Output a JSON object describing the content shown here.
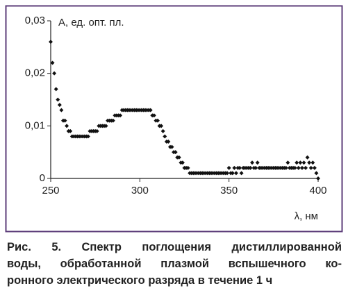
{
  "chart_data": {
    "type": "scatter",
    "ylabel": "A, ед. опт. пл.",
    "xlabel": "λ, нм",
    "color": "#111111",
    "xlim": [
      250,
      400
    ],
    "xticks": [
      250,
      300,
      350,
      400
    ],
    "ylim": [
      0,
      0.03
    ],
    "yticks": [
      {
        "value": 0,
        "label": "0"
      },
      {
        "value": 0.01,
        "label": "0,01"
      },
      {
        "value": 0.02,
        "label": "0,02"
      },
      {
        "value": 0.03,
        "label": "0,03"
      }
    ],
    "x": [
      250,
      251,
      252,
      253,
      254,
      255,
      256,
      257,
      258,
      259,
      260,
      261,
      262,
      263,
      264,
      265,
      266,
      267,
      268,
      269,
      270,
      271,
      272,
      273,
      274,
      275,
      276,
      277,
      278,
      279,
      280,
      281,
      282,
      283,
      284,
      285,
      286,
      287,
      288,
      289,
      290,
      291,
      292,
      293,
      294,
      295,
      296,
      297,
      298,
      299,
      300,
      301,
      302,
      303,
      304,
      305,
      306,
      307,
      308,
      309,
      310,
      311,
      312,
      313,
      314,
      315,
      316,
      317,
      318,
      319,
      320,
      321,
      322,
      323,
      324,
      325,
      326,
      327,
      328,
      329,
      330,
      331,
      332,
      333,
      334,
      335,
      336,
      337,
      338,
      339,
      340,
      341,
      342,
      343,
      344,
      345,
      346,
      347,
      348,
      349,
      350,
      351,
      352,
      353,
      354,
      355,
      356,
      357,
      358,
      359,
      360,
      361,
      362,
      363,
      364,
      365,
      366,
      367,
      368,
      369,
      370,
      371,
      372,
      373,
      374,
      375,
      376,
      377,
      378,
      379,
      380,
      381,
      382,
      383,
      384,
      385,
      386,
      387,
      388,
      389,
      390,
      391,
      392,
      393,
      394,
      395,
      396,
      397,
      398,
      399,
      400
    ],
    "values": [
      0.026,
      0.022,
      0.02,
      0.017,
      0.015,
      0.014,
      0.013,
      0.011,
      0.011,
      0.01,
      0.009,
      0.009,
      0.008,
      0.008,
      0.008,
      0.008,
      0.008,
      0.008,
      0.008,
      0.008,
      0.008,
      0.008,
      0.009,
      0.009,
      0.009,
      0.009,
      0.009,
      0.01,
      0.01,
      0.01,
      0.01,
      0.01,
      0.011,
      0.011,
      0.011,
      0.011,
      0.012,
      0.012,
      0.012,
      0.012,
      0.013,
      0.013,
      0.013,
      0.013,
      0.013,
      0.013,
      0.013,
      0.013,
      0.013,
      0.013,
      0.013,
      0.013,
      0.013,
      0.013,
      0.013,
      0.013,
      0.013,
      0.012,
      0.012,
      0.011,
      0.011,
      0.01,
      0.01,
      0.009,
      0.008,
      0.007,
      0.007,
      0.006,
      0.006,
      0.005,
      0.005,
      0.004,
      0.004,
      0.003,
      0.003,
      0.002,
      0.002,
      0.002,
      0.001,
      0.001,
      0.001,
      0.001,
      0.001,
      0.001,
      0.001,
      0.001,
      0.001,
      0.001,
      0.001,
      0.001,
      0.001,
      0.001,
      0.001,
      0.001,
      0.001,
      0.001,
      0.001,
      0.001,
      0.001,
      0.001,
      0.002,
      0.001,
      0.001,
      0.002,
      0.001,
      0.002,
      0.002,
      0.001,
      0.002,
      0.002,
      0.002,
      0.002,
      0.002,
      0.003,
      0.002,
      0.002,
      0.003,
      0.002,
      0.002,
      0.002,
      0.002,
      0.002,
      0.002,
      0.002,
      0.002,
      0.002,
      0.002,
      0.002,
      0.002,
      0.002,
      0.002,
      0.002,
      0.002,
      0.003,
      0.002,
      0.002,
      0.002,
      0.002,
      0.003,
      0.002,
      0.003,
      0.002,
      0.003,
      0.002,
      0.004,
      0.003,
      0.002,
      0.003,
      0.002,
      0.001,
      0
    ]
  },
  "caption": [
    "Рис. 5. Спектр поглощения дистиллированной",
    "воды, обработанной плазмой вспышечного ко-",
    "ронного электрического разряда в течение 1 ч"
  ]
}
